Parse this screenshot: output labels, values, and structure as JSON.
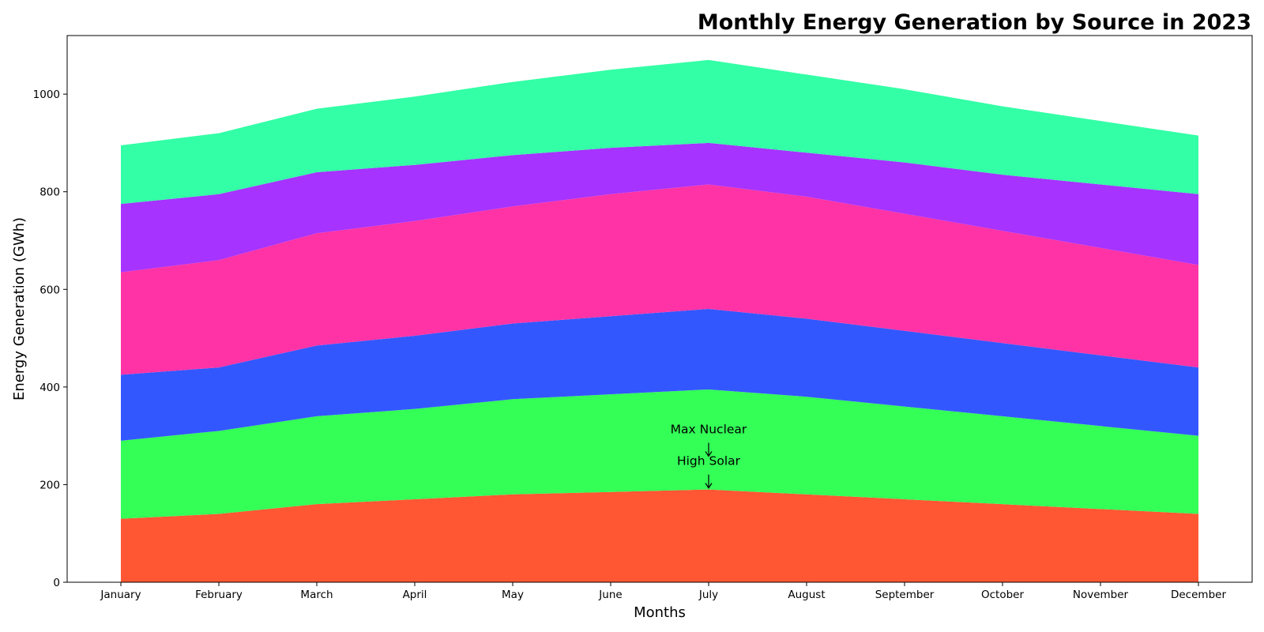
{
  "chart_data": {
    "type": "area",
    "stacked": true,
    "title": "Monthly Energy Generation by Source in 2023",
    "xlabel": "Months",
    "ylabel": "Energy Generation (GWh)",
    "categories": [
      "January",
      "February",
      "March",
      "April",
      "May",
      "June",
      "July",
      "August",
      "September",
      "October",
      "November",
      "December"
    ],
    "ylim": [
      0,
      1120
    ],
    "yticks": [
      0,
      200,
      400,
      600,
      800,
      1000
    ],
    "grid": false,
    "legend": "none",
    "series": [
      {
        "color": "#ff5733",
        "values": [
          130,
          140,
          160,
          170,
          180,
          185,
          190,
          180,
          170,
          160,
          150,
          140
        ]
      },
      {
        "color": "#33ff57",
        "values": [
          160,
          170,
          180,
          185,
          195,
          200,
          205,
          200,
          190,
          180,
          170,
          160
        ]
      },
      {
        "color": "#3357ff",
        "values": [
          135,
          130,
          145,
          150,
          155,
          160,
          165,
          160,
          155,
          150,
          145,
          140
        ]
      },
      {
        "color": "#ff33a6",
        "values": [
          210,
          220,
          230,
          235,
          240,
          250,
          255,
          250,
          240,
          230,
          220,
          210
        ]
      },
      {
        "color": "#a633ff",
        "values": [
          140,
          135,
          125,
          115,
          105,
          95,
          85,
          90,
          105,
          115,
          130,
          145
        ]
      },
      {
        "color": "#33ffa6",
        "values": [
          120,
          125,
          130,
          140,
          150,
          160,
          170,
          160,
          150,
          140,
          130,
          120
        ]
      }
    ],
    "annotations": [
      {
        "text": "Max Nuclear",
        "x": "July",
        "y": 255,
        "text_y": 305
      },
      {
        "text": "High Solar",
        "x": "July",
        "y": 190,
        "text_y": 240
      }
    ]
  }
}
